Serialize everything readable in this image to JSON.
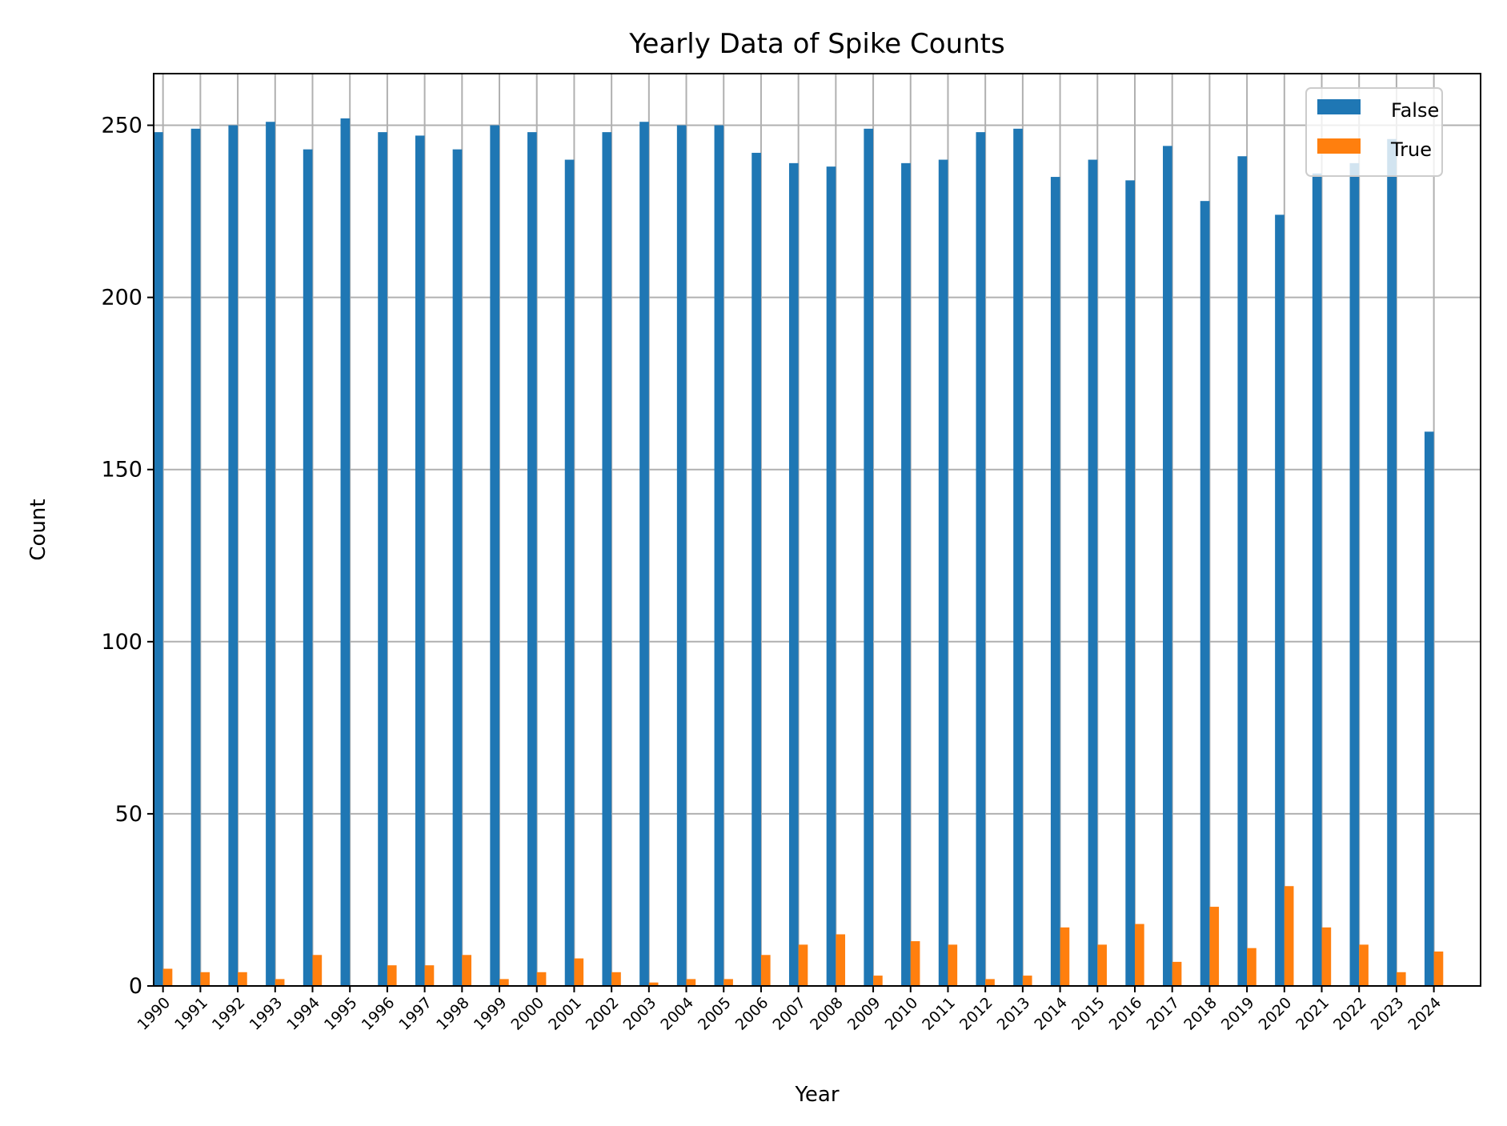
{
  "chart_data": {
    "type": "bar",
    "title": "Yearly Data of Spike Counts",
    "xlabel": "Year",
    "ylabel": "Count",
    "ylim": [
      0,
      265
    ],
    "yticks": [
      0,
      50,
      100,
      150,
      200,
      250
    ],
    "grid": true,
    "legend_position": "top-right",
    "categories": [
      "1990",
      "1991",
      "1992",
      "1993",
      "1994",
      "1995",
      "1996",
      "1997",
      "1998",
      "1999",
      "2000",
      "2001",
      "2002",
      "2003",
      "2004",
      "2005",
      "2006",
      "2007",
      "2008",
      "2009",
      "2010",
      "2011",
      "2012",
      "2013",
      "2014",
      "2015",
      "2016",
      "2017",
      "2018",
      "2019",
      "2020",
      "2021",
      "2022",
      "2023",
      "2024"
    ],
    "series": [
      {
        "name": "False",
        "color": "#1f77b4",
        "values": [
          248,
          249,
          250,
          251,
          243,
          252,
          248,
          247,
          243,
          250,
          248,
          240,
          248,
          251,
          250,
          250,
          242,
          239,
          238,
          249,
          239,
          240,
          248,
          249,
          235,
          240,
          234,
          244,
          228,
          241,
          224,
          236,
          239,
          246,
          161
        ]
      },
      {
        "name": "True",
        "color": "#ff7f0e",
        "values": [
          5,
          4,
          4,
          2,
          9,
          0,
          6,
          6,
          9,
          2,
          4,
          8,
          4,
          1,
          2,
          2,
          9,
          12,
          15,
          3,
          13,
          12,
          2,
          3,
          17,
          12,
          18,
          7,
          23,
          11,
          29,
          17,
          12,
          4,
          10
        ]
      }
    ]
  }
}
